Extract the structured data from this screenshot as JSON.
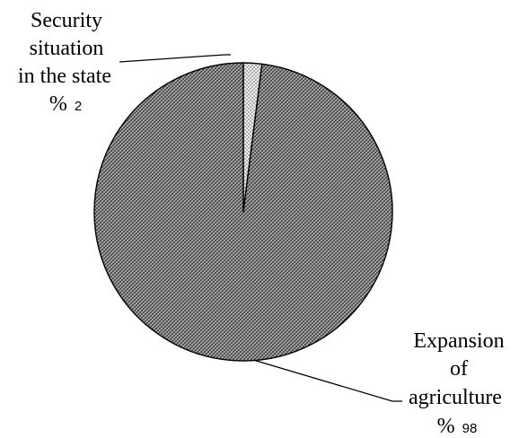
{
  "chart_data": {
    "type": "pie",
    "title": "",
    "start_angle_deg": -90,
    "direction": "clockwise",
    "slices": [
      {
        "label_lines": [
          "Security",
          "situation",
          "in the state"
        ],
        "value": 2,
        "value_prefix": "%",
        "pattern": "dots"
      },
      {
        "label_lines": [
          "Expansion",
          "of",
          "agriculture"
        ],
        "value": 98,
        "value_prefix": "%",
        "pattern": "crosshatch"
      }
    ],
    "legend": "none"
  }
}
